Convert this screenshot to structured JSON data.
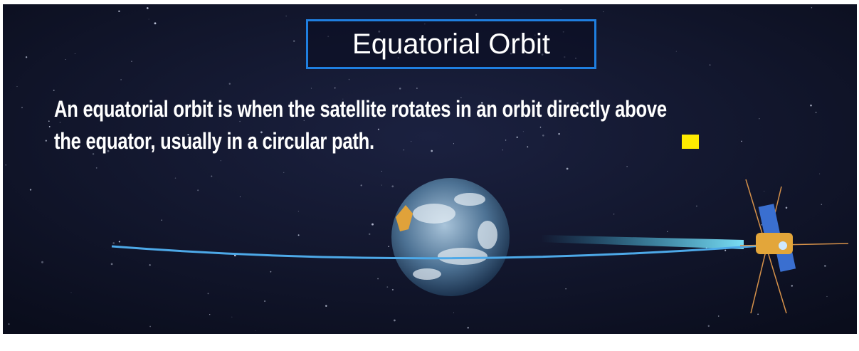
{
  "header": {
    "title": "Equatorial Orbit"
  },
  "body": {
    "lines": [
      "An equatorial orbit is when the satellite rotates in an orbit directly above",
      "the equator, usually in a circular path."
    ]
  }
}
